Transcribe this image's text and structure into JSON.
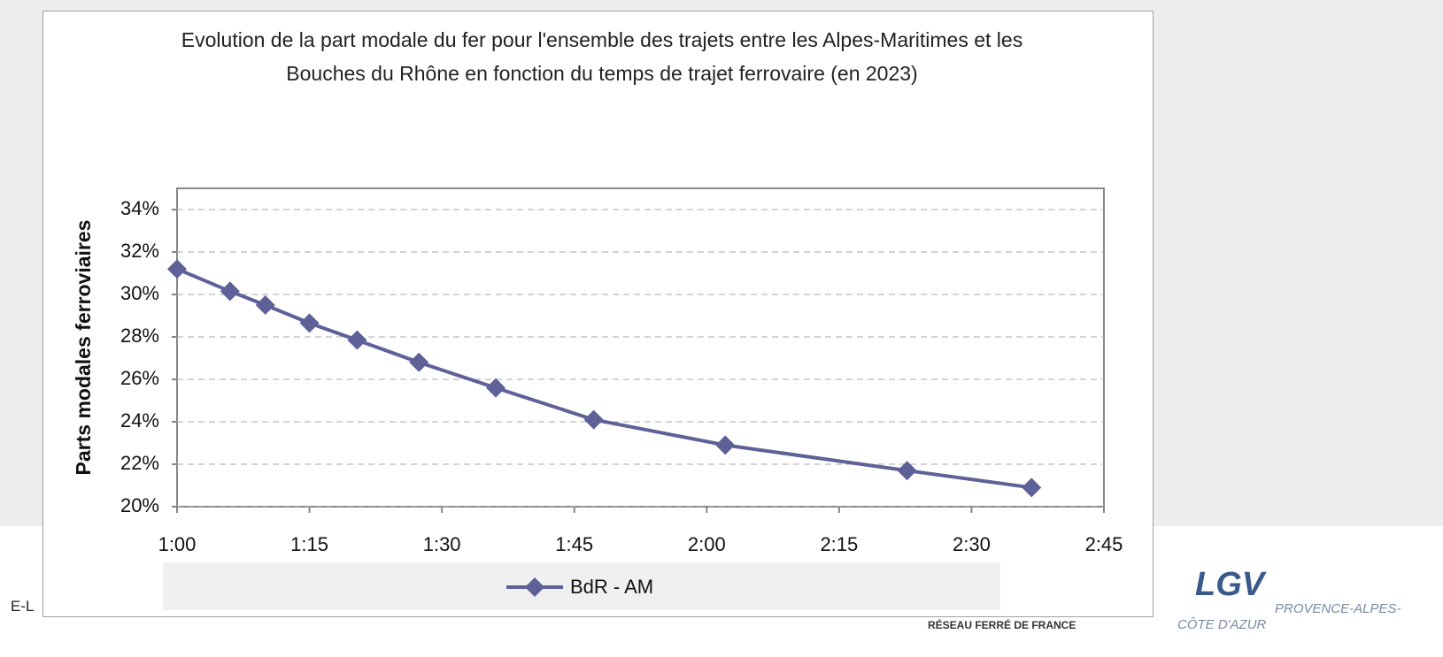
{
  "chart_data": {
    "type": "line",
    "title": "Evolution de la part modale du fer pour l'ensemble des trajets entre les Alpes-Maritimes et les Bouches du Rhône en fonction du temps de trajet ferrovaire (en 2023)",
    "y_label": "Parts modales ferroviaires",
    "x": [
      60,
      66,
      70,
      75,
      80.4,
      87.4,
      96.1,
      107.2,
      122.1,
      142.7,
      156.8
    ],
    "series": [
      {
        "name": "BdR - AM",
        "color": "#5e6098",
        "values": [
          31.2,
          30.15,
          29.5,
          28.65,
          27.85,
          26.8,
          25.6,
          24.1,
          22.9,
          21.7,
          20.9
        ]
      }
    ],
    "xlim": [
      60,
      165
    ],
    "xticks": [
      {
        "value": 60,
        "label": "1:00"
      },
      {
        "value": 75,
        "label": "1:15"
      },
      {
        "value": 90,
        "label": "1:30"
      },
      {
        "value": 105,
        "label": "1:45"
      },
      {
        "value": 120,
        "label": "2:00"
      },
      {
        "value": 135,
        "label": "2:15"
      },
      {
        "value": 150,
        "label": "2:30"
      },
      {
        "value": 165,
        "label": "2:45"
      }
    ],
    "ylim": [
      20,
      35
    ],
    "yticks": [
      {
        "value": 20,
        "label": "20%"
      },
      {
        "value": 22,
        "label": "22%"
      },
      {
        "value": 24,
        "label": "24%"
      },
      {
        "value": 26,
        "label": "26%"
      },
      {
        "value": 28,
        "label": "28%"
      },
      {
        "value": 30,
        "label": "30%"
      },
      {
        "value": 32,
        "label": "32%"
      },
      {
        "value": 34,
        "label": "34%"
      }
    ],
    "grid": true,
    "legend": "bottom"
  },
  "footer": {
    "left": "E-L",
    "rff": "RÉSEAU FERRÉ DE FRANCE",
    "lgv": "LGV",
    "region1": "PROVENCE-ALPES-",
    "region2": "CÔTE D'AZUR"
  }
}
